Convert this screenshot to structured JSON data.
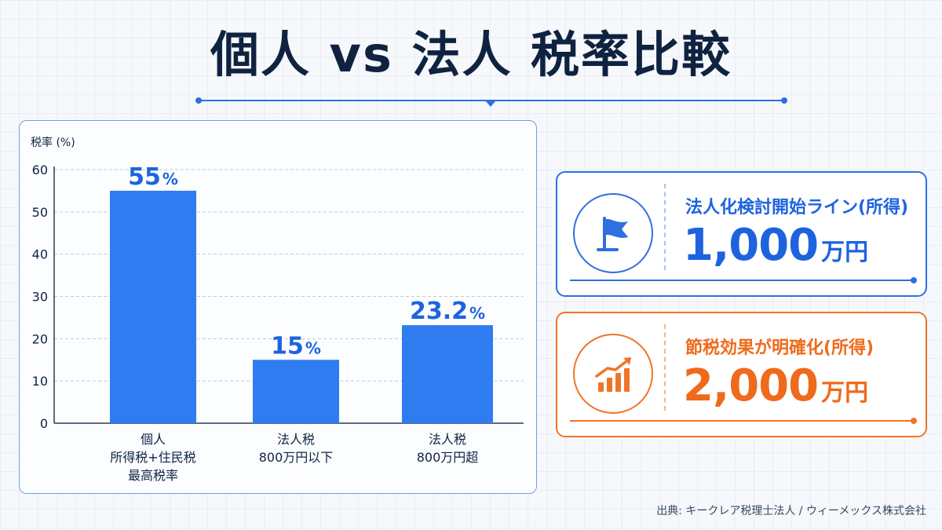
{
  "title": "個人 vs 法人 税率比較",
  "chart_data": {
    "type": "bar",
    "ylabel": "税率 (%)",
    "ylim": [
      0,
      60
    ],
    "yticks": [
      0,
      10,
      20,
      30,
      40,
      50,
      60
    ],
    "grid": true,
    "categories": [
      [
        "個人",
        "所得税+住民税",
        "最高税率"
      ],
      [
        "法人税",
        "800万円以下"
      ],
      [
        "法人税",
        "800万円超"
      ]
    ],
    "values": [
      55,
      15,
      23.2
    ],
    "value_labels": [
      {
        "num": "55",
        "unit": "%"
      },
      {
        "num": "15",
        "unit": "%"
      },
      {
        "num": "23.2",
        "unit": "%"
      }
    ],
    "bar_color": "#2f7cf0"
  },
  "cards": [
    {
      "label": "法人化検討開始ライン(所得)",
      "value": "1,000",
      "unit": "万円",
      "icon": "flag-icon",
      "color": "#1e63de"
    },
    {
      "label": "節税効果が明確化(所得)",
      "value": "2,000",
      "unit": "万円",
      "icon": "growth-chart-icon",
      "color": "#ef6a1c"
    }
  ],
  "source": "出典: キークレア税理士法人 / ウィーメックス株式会社"
}
